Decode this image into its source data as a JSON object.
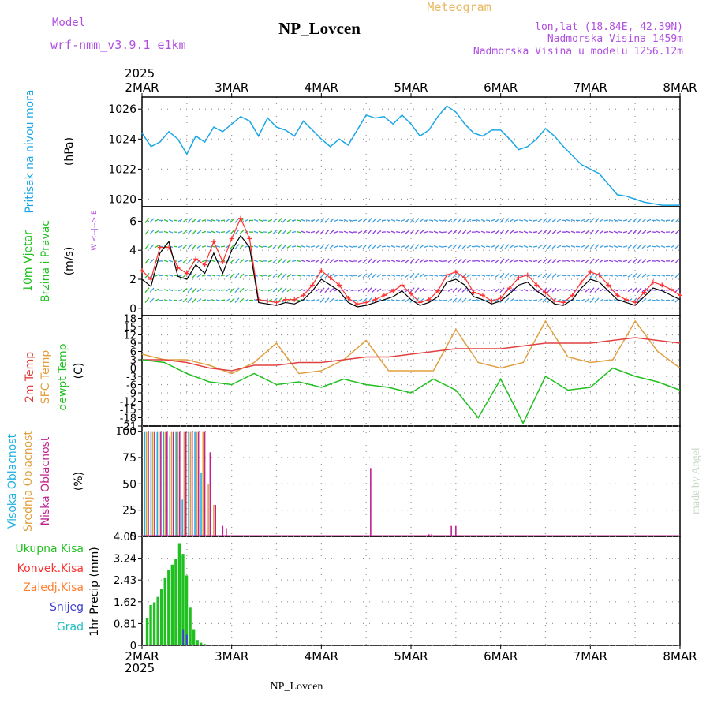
{
  "header": {
    "model_label": "Model",
    "model_name": "wrf-nmm_v3.9.1 e1km",
    "station": "NP_Lovcen",
    "meteogram": "Meteogram",
    "lonlat": "lon,lat (18.84E, 42.39N)",
    "altitude": "Nadmorska Visina 1459m",
    "model_altitude": "Nadmorska Visina u modelu 1256.12m",
    "footer_station": "NP_Lovcen",
    "credit": "made by Angel",
    "year_top": "2025",
    "year_bottom": "2025"
  },
  "colors": {
    "pressure": "#1aa6e6",
    "temp2m": "#e04040",
    "sfc": "#e0a040",
    "dewpt": "#20c020",
    "wind_speed": "#000000",
    "gust": "#ff3030",
    "high_cloud": "#20b0e0",
    "mid_cloud": "#e0a040",
    "low_cloud": "#c02090",
    "total_precip": "#20c020",
    "conv_precip": "#ff3030",
    "frozen_precip": "#ff8030",
    "snow": "#4040d0",
    "hail": "#20c0c0"
  },
  "chart_data": [
    {
      "type": "line",
      "panel": "pressure",
      "ylabel_a": "Pritisak na nivou mora",
      "ylabel_b": "(hPa)",
      "x_ticks": [
        "2MAR",
        "3MAR",
        "4MAR",
        "5MAR",
        "6MAR",
        "7MAR",
        "8MAR"
      ],
      "y_ticks": [
        1020,
        1022,
        1024,
        1026
      ],
      "ylim": [
        1019.5,
        1026.8
      ],
      "series": [
        {
          "x": [
            0,
            0.1,
            0.2,
            0.3,
            0.4,
            0.5,
            0.6,
            0.7,
            0.8,
            0.9,
            1.0,
            1.1,
            1.2,
            1.3,
            1.4,
            1.5,
            1.6,
            1.7,
            1.8,
            1.9,
            2.0,
            2.1,
            2.2,
            2.3,
            2.4,
            2.5,
            2.6,
            2.7,
            2.8,
            2.9,
            3.0,
            3.1,
            3.2,
            3.3,
            3.4,
            3.5,
            3.6,
            3.7,
            3.8,
            3.9,
            4.0,
            4.1,
            4.2,
            4.3,
            4.4,
            4.5,
            4.6,
            4.7,
            4.8,
            4.9,
            5.0,
            5.1,
            5.2,
            5.3,
            5.4,
            5.5,
            5.6,
            5.7,
            5.8,
            5.9,
            6.0
          ],
          "values": [
            1024.4,
            1023.5,
            1023.8,
            1024.5,
            1024.0,
            1023.0,
            1024.2,
            1023.8,
            1024.8,
            1024.5,
            1025.0,
            1025.5,
            1025.2,
            1024.2,
            1025.4,
            1024.8,
            1024.6,
            1024.2,
            1025.2,
            1024.6,
            1024.0,
            1023.5,
            1024.0,
            1023.6,
            1024.6,
            1025.6,
            1025.4,
            1025.5,
            1025.0,
            1025.6,
            1025.0,
            1024.2,
            1024.6,
            1025.5,
            1026.2,
            1025.8,
            1025.0,
            1024.4,
            1024.2,
            1024.6,
            1024.6,
            1024.0,
            1023.3,
            1023.5,
            1024.0,
            1024.7,
            1024.2,
            1023.5,
            1022.9,
            1022.3,
            1022.0,
            1021.7,
            1021.0,
            1020.3,
            1020.2,
            1020.0,
            1019.8,
            1019.7,
            1019.6,
            1019.6,
            1019.6
          ]
        }
      ]
    },
    {
      "type": "line",
      "panel": "wind",
      "ylabel_a": "10m Vjetar",
      "ylabel_a2": "Brzina i Pravac",
      "ylabel_b": "(m/s)",
      "compass": "W <--|--> E",
      "y_ticks": [
        0,
        2,
        4,
        6
      ],
      "ylim": [
        -0.5,
        7
      ],
      "series": [
        {
          "x": [
            0,
            0.1,
            0.2,
            0.3,
            0.4,
            0.5,
            0.6,
            0.7,
            0.8,
            0.9,
            1.0,
            1.1,
            1.2,
            1.3,
            1.4,
            1.5,
            1.6,
            1.7,
            1.8,
            1.9,
            2.0,
            2.1,
            2.2,
            2.3,
            2.4,
            2.5,
            2.6,
            2.7,
            2.8,
            2.9,
            3.0,
            3.1,
            3.2,
            3.3,
            3.4,
            3.5,
            3.6,
            3.7,
            3.8,
            3.9,
            4.0,
            4.1,
            4.2,
            4.3,
            4.4,
            4.5,
            4.6,
            4.7,
            4.8,
            4.9,
            5.0,
            5.1,
            5.2,
            5.3,
            5.4,
            5.5,
            5.6,
            5.7,
            5.8,
            5.9,
            6.0
          ],
          "values": [
            2.0,
            1.5,
            3.8,
            4.6,
            2.2,
            2.0,
            3.0,
            2.4,
            3.8,
            2.4,
            4.0,
            5.0,
            4.2,
            0.4,
            0.3,
            0.2,
            0.4,
            0.3,
            0.6,
            1.2,
            2.0,
            1.6,
            1.2,
            0.4,
            0.1,
            0.2,
            0.4,
            0.6,
            0.8,
            1.2,
            0.6,
            0.2,
            0.4,
            0.8,
            1.8,
            2.0,
            1.6,
            0.8,
            0.6,
            0.3,
            0.5,
            1.0,
            1.6,
            1.8,
            1.2,
            0.8,
            0.3,
            0.2,
            0.6,
            1.4,
            2.0,
            1.8,
            1.2,
            0.6,
            0.4,
            0.2,
            0.8,
            1.4,
            1.2,
            0.9,
            0.6
          ]
        },
        {
          "x": [
            0,
            0.1,
            0.2,
            0.3,
            0.4,
            0.5,
            0.6,
            0.7,
            0.8,
            0.9,
            1.0,
            1.1,
            1.2,
            1.3,
            1.4,
            1.5,
            1.6,
            1.7,
            1.8,
            1.9,
            2.0,
            2.1,
            2.2,
            2.3,
            2.4,
            2.5,
            2.6,
            2.7,
            2.8,
            2.9,
            3.0,
            3.1,
            3.2,
            3.3,
            3.4,
            3.5,
            3.6,
            3.7,
            3.8,
            3.9,
            4.0,
            4.1,
            4.2,
            4.3,
            4.4,
            4.5,
            4.6,
            4.7,
            4.8,
            4.9,
            5.0,
            5.1,
            5.2,
            5.3,
            5.4,
            5.5,
            5.6,
            5.7,
            5.8,
            5.9,
            6.0
          ],
          "values": [
            2.6,
            2.0,
            4.2,
            4.2,
            2.8,
            2.4,
            3.4,
            3.0,
            4.6,
            3.2,
            4.8,
            6.2,
            4.8,
            0.6,
            0.5,
            0.4,
            0.6,
            0.6,
            0.9,
            1.6,
            2.6,
            2.1,
            1.6,
            0.7,
            0.3,
            0.4,
            0.6,
            0.9,
            1.2,
            1.6,
            1.0,
            0.4,
            0.6,
            1.2,
            2.3,
            2.5,
            2.1,
            1.1,
            0.9,
            0.5,
            0.7,
            1.4,
            2.1,
            2.3,
            1.6,
            1.1,
            0.5,
            0.4,
            0.9,
            1.8,
            2.5,
            2.3,
            1.6,
            0.9,
            0.6,
            0.4,
            1.1,
            1.8,
            1.6,
            1.3,
            0.9
          ]
        }
      ]
    },
    {
      "type": "line",
      "panel": "temperature",
      "ylabel_a": "2m Temp",
      "ylabel_a2": "SFC Temp",
      "ylabel_a3": "dewpt Temp",
      "ylabel_b": "(C)",
      "y_ticks": [
        18,
        15,
        12,
        9,
        6,
        3,
        0,
        -3,
        -6,
        -9,
        -12,
        -15,
        -18,
        -21
      ],
      "ylim": [
        -21,
        19
      ],
      "series": [
        {
          "x": [
            0,
            0.25,
            0.5,
            0.75,
            1.0,
            1.25,
            1.5,
            1.75,
            2.0,
            2.25,
            2.5,
            2.75,
            3.0,
            3.25,
            3.5,
            3.75,
            4.0,
            4.25,
            4.5,
            4.75,
            5.0,
            5.25,
            5.5,
            5.75,
            6.0
          ],
          "values": [
            3,
            3,
            2,
            0,
            -1,
            1,
            1,
            2,
            2,
            3,
            4,
            4,
            5,
            6,
            7,
            7,
            7,
            8,
            9,
            9,
            9,
            10,
            11,
            10,
            9
          ]
        },
        {
          "x": [
            0,
            0.25,
            0.5,
            0.75,
            1.0,
            1.25,
            1.5,
            1.75,
            2.0,
            2.25,
            2.5,
            2.75,
            3.0,
            3.25,
            3.5,
            3.75,
            4.0,
            4.25,
            4.5,
            4.75,
            5.0,
            5.25,
            5.5,
            5.75,
            6.0
          ],
          "values": [
            5,
            3,
            3,
            1,
            -2,
            2,
            9,
            -2,
            -1,
            3,
            10,
            -1,
            -1,
            -1,
            14,
            2,
            0,
            2,
            17,
            4,
            2,
            3,
            17,
            6,
            0
          ]
        },
        {
          "x": [
            0,
            0.25,
            0.5,
            0.75,
            1.0,
            1.25,
            1.5,
            1.75,
            2.0,
            2.25,
            2.5,
            2.75,
            3.0,
            3.25,
            3.5,
            3.75,
            4.0,
            4.25,
            4.5,
            4.75,
            5.0,
            5.25,
            5.5,
            5.75,
            6.0
          ],
          "values": [
            3,
            2,
            -2,
            -5,
            -6,
            -2,
            -6,
            -5,
            -7,
            -4,
            -6,
            -7,
            -9,
            -4,
            -8,
            -18,
            -4,
            -20,
            -3,
            -8,
            -7,
            0,
            -3,
            -5,
            -8
          ]
        }
      ]
    },
    {
      "type": "bar",
      "panel": "cloud",
      "ylabel_a": "Visoka Oblacnost",
      "ylabel_a2": "Srednja Oblacnost",
      "ylabel_a3": "Niska Oblacnost",
      "ylabel_b": "(%)",
      "y_ticks": [
        0,
        25,
        50,
        75,
        100
      ],
      "ylim": [
        0,
        105
      ],
      "series": [
        {
          "name": "high",
          "x": [
            0.03,
            0.1,
            0.17,
            0.24,
            0.31,
            0.38,
            0.45,
            0.52,
            0.59,
            0.66
          ],
          "values": [
            100,
            100,
            100,
            100,
            95,
            100,
            35,
            100,
            100,
            60
          ]
        },
        {
          "name": "mid",
          "x": [
            0.05,
            0.12,
            0.19,
            0.26,
            0.33,
            0.4,
            0.47,
            0.54,
            0.61,
            0.68,
            0.74,
            0.8
          ],
          "values": [
            100,
            100,
            100,
            100,
            100,
            100,
            100,
            100,
            100,
            100,
            50,
            30
          ]
        },
        {
          "name": "low",
          "x": [
            0.07,
            0.14,
            0.21,
            0.28,
            0.35,
            0.42,
            0.49,
            0.56,
            0.63,
            0.7,
            0.76,
            0.82,
            0.9,
            0.94,
            2.55,
            3.2,
            3.23,
            3.45,
            3.5
          ],
          "values": [
            100,
            100,
            100,
            100,
            100,
            100,
            100,
            100,
            100,
            100,
            80,
            30,
            10,
            8,
            65,
            2,
            2,
            10,
            10
          ]
        }
      ]
    },
    {
      "type": "bar",
      "panel": "precip",
      "legend": [
        "Ukupna Kisa",
        "Konvek.Kisa",
        "Zaledj.Kisa",
        "Snijeg",
        "Grad"
      ],
      "ylabel_b": "1hr Precip (mm)",
      "y_ticks": [
        "0",
        "0.81",
        "1.62",
        "2.43",
        "3.24",
        "4.05"
      ],
      "ylim": [
        0,
        4.05
      ],
      "x_ticks": [
        "2MAR",
        "3MAR",
        "4MAR",
        "5MAR",
        "6MAR",
        "7MAR",
        "8MAR"
      ],
      "series": [
        {
          "name": "total",
          "x": [
            0.06,
            0.1,
            0.14,
            0.18,
            0.22,
            0.26,
            0.3,
            0.34,
            0.38,
            0.42,
            0.46,
            0.5,
            0.54,
            0.58,
            0.62,
            0.66,
            0.7
          ],
          "values": [
            1.0,
            1.5,
            1.6,
            1.8,
            2.1,
            2.5,
            2.8,
            3.0,
            3.2,
            3.8,
            3.4,
            2.6,
            1.4,
            0.6,
            0.2,
            0.1,
            0.05
          ]
        },
        {
          "name": "snow",
          "x": [
            0.46,
            0.5
          ],
          "values": [
            0.6,
            0.4
          ]
        }
      ]
    }
  ]
}
